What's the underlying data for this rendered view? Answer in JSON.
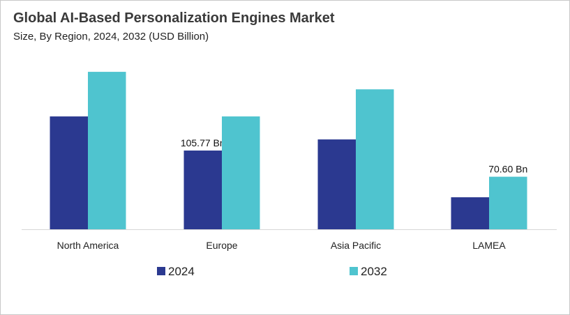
{
  "chart_data": {
    "type": "bar",
    "title": "Global AI-Based Personalization Engines Market",
    "subtitle": "Size, By Region, 2024, 2032 (USD Billion)",
    "categories": [
      "North America",
      "Europe",
      "Asia Pacific",
      "LAMEA"
    ],
    "series": [
      {
        "name": "2024",
        "color": "#2b3990",
        "values": [
          151.6,
          105.77,
          120.7,
          43.0
        ],
        "labels": [
          null,
          "105.77 Bn",
          null,
          null
        ]
      },
      {
        "name": "2032",
        "color": "#4fc4cf",
        "values": [
          211.5,
          151.6,
          188.0,
          70.6
        ],
        "labels": [
          null,
          null,
          null,
          "70.60 Bn"
        ]
      }
    ],
    "xlabel": "",
    "ylabel": "",
    "ylim": [
      0,
      220
    ],
    "grid": false,
    "legend": "bottom"
  }
}
